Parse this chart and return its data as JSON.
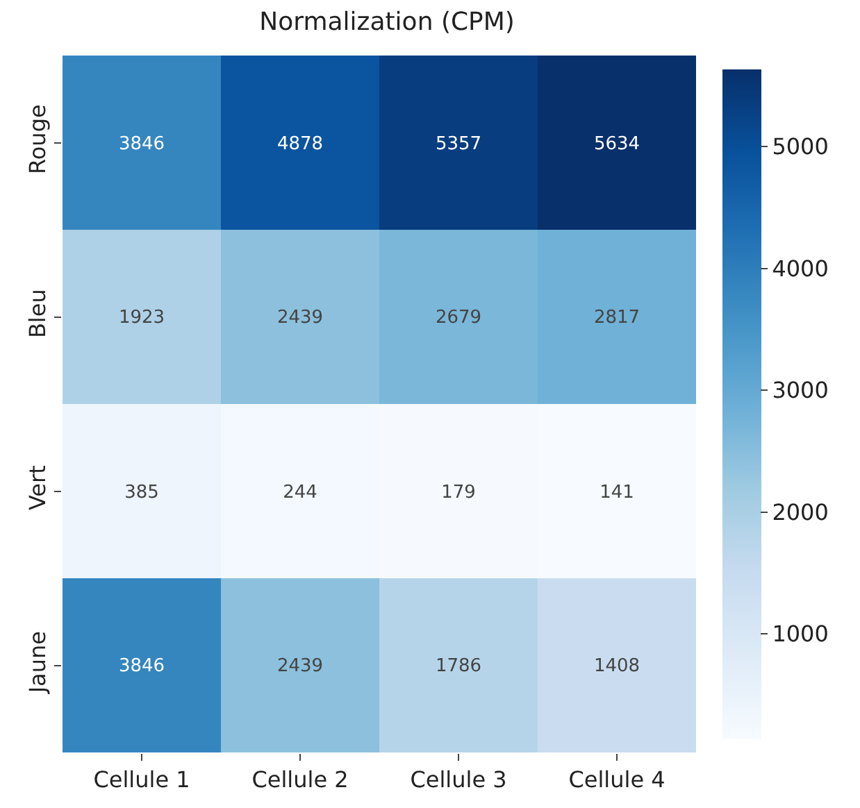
{
  "chart_data": {
    "type": "heatmap",
    "title": "Normalization (CPM)",
    "categories": [
      "Cellule 1",
      "Cellule 2",
      "Cellule 3",
      "Cellule 4"
    ],
    "y_categories": [
      "Rouge",
      "Bleu",
      "Vert",
      "Jaune"
    ],
    "cells": [
      [
        3846,
        4878,
        5357,
        5634
      ],
      [
        1923,
        2439,
        2679,
        2817
      ],
      [
        385,
        244,
        179,
        141
      ],
      [
        3846,
        2439,
        1786,
        1408
      ]
    ],
    "data_labels": true,
    "clim": [
      141,
      5634
    ],
    "cticks": [
      1000,
      2000,
      3000,
      4000,
      5000
    ]
  }
}
